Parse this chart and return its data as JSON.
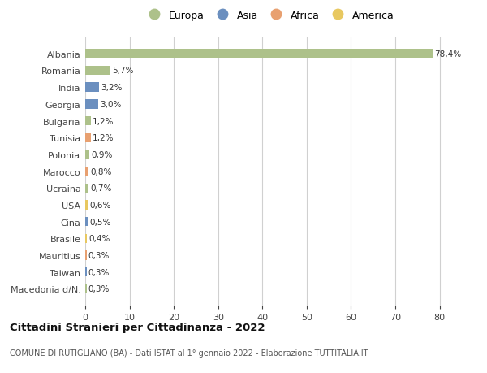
{
  "countries": [
    "Albania",
    "Romania",
    "India",
    "Georgia",
    "Bulgaria",
    "Tunisia",
    "Polonia",
    "Marocco",
    "Ucraina",
    "USA",
    "Cina",
    "Brasile",
    "Mauritius",
    "Taiwan",
    "Macedonia d/N."
  ],
  "values": [
    78.4,
    5.7,
    3.2,
    3.0,
    1.2,
    1.2,
    0.9,
    0.8,
    0.7,
    0.6,
    0.5,
    0.4,
    0.3,
    0.3,
    0.3
  ],
  "labels": [
    "78,4%",
    "5,7%",
    "3,2%",
    "3,0%",
    "1,2%",
    "1,2%",
    "0,9%",
    "0,8%",
    "0,7%",
    "0,6%",
    "0,5%",
    "0,4%",
    "0,3%",
    "0,3%",
    "0,3%"
  ],
  "continents": [
    "Europa",
    "Europa",
    "Asia",
    "Asia",
    "Europa",
    "Africa",
    "Europa",
    "Africa",
    "Europa",
    "America",
    "Asia",
    "America",
    "Africa",
    "Asia",
    "Europa"
  ],
  "continent_colors": {
    "Europa": "#adc18a",
    "Asia": "#6b8fbf",
    "Africa": "#e8a070",
    "America": "#e8c860"
  },
  "legend_order": [
    "Europa",
    "Asia",
    "Africa",
    "America"
  ],
  "xlim": [
    0,
    83
  ],
  "xticks": [
    0,
    10,
    20,
    30,
    40,
    50,
    60,
    70,
    80
  ],
  "title": "Cittadini Stranieri per Cittadinanza - 2022",
  "subtitle": "COMUNE DI RUTIGLIANO (BA) - Dati ISTAT al 1° gennaio 2022 - Elaborazione TUTTITALIA.IT",
  "background_color": "#ffffff",
  "grid_color": "#d0d0d0",
  "bar_height": 0.55
}
